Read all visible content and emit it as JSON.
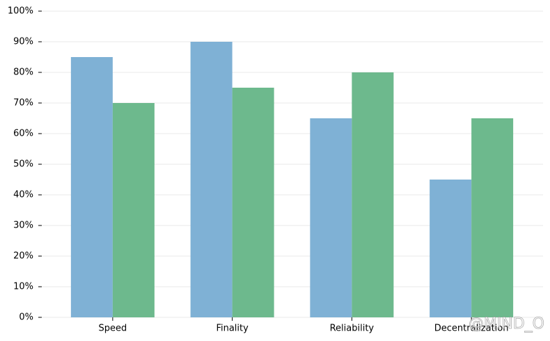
{
  "chart_data": {
    "type": "bar",
    "categories": [
      "Speed",
      "Finality",
      "Reliability",
      "Decentralization"
    ],
    "series": [
      {
        "color": "#7fb1d5",
        "values": [
          85,
          90,
          65,
          45
        ]
      },
      {
        "color": "#6db98d",
        "values": [
          70,
          75,
          80,
          65
        ]
      }
    ],
    "ylim": [
      0,
      100
    ],
    "yticks": [
      {
        "value": 0,
        "label": "0%"
      },
      {
        "value": 10,
        "label": "10%"
      },
      {
        "value": 20,
        "label": "20%"
      },
      {
        "value": 30,
        "label": "30%"
      },
      {
        "value": 40,
        "label": "40%"
      },
      {
        "value": 50,
        "label": "50%"
      },
      {
        "value": 60,
        "label": "60%"
      },
      {
        "value": 70,
        "label": "70%"
      },
      {
        "value": 80,
        "label": "80%"
      },
      {
        "value": 90,
        "label": "90%"
      },
      {
        "value": 100,
        "label": "100%"
      }
    ],
    "grid": true,
    "watermark": "@MIND_O"
  }
}
